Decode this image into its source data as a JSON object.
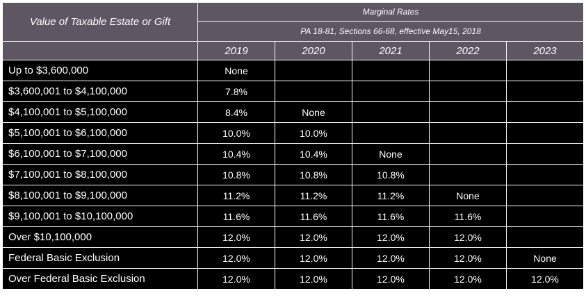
{
  "header": {
    "label_column": "Value of Taxable Estate or Gift",
    "group_title": "Marginal Rates",
    "group_subtitle": "PA 18-81, Sections 66-68, effective May15, 2018",
    "years": [
      "2019",
      "2020",
      "2021",
      "2022",
      "2023"
    ]
  },
  "rows": [
    {
      "label": "Up to $3,600,000",
      "values": [
        "None",
        "",
        "",
        "",
        ""
      ]
    },
    {
      "label": "$3,600,001 to $4,100,000",
      "values": [
        "7.8%",
        "",
        "",
        "",
        ""
      ]
    },
    {
      "label": "$4,100,001 to $5,100,000",
      "values": [
        "8.4%",
        "None",
        "",
        "",
        ""
      ]
    },
    {
      "label": "$5,100,001 to $6,100,000",
      "values": [
        "10.0%",
        "10.0%",
        "",
        "",
        ""
      ]
    },
    {
      "label": "$6,100,001 to $7,100,000",
      "values": [
        "10.4%",
        "10.4%",
        "None",
        "",
        ""
      ]
    },
    {
      "label": "$7,100,001 to $8,100,000",
      "values": [
        "10.8%",
        "10.8%",
        "10.8%",
        "",
        ""
      ]
    },
    {
      "label": "$8,100,001 to $9,100,000",
      "values": [
        "11.2%",
        "11.2%",
        "11.2%",
        "None",
        ""
      ]
    },
    {
      "label": "$9,100,001 to $10,100,000",
      "values": [
        "11.6%",
        "11.6%",
        "11.6%",
        "11.6%",
        ""
      ]
    },
    {
      "label": "Over $10,100,000",
      "values": [
        "12.0%",
        "12.0%",
        "12.0%",
        "12.0%",
        ""
      ]
    },
    {
      "label": "Federal Basic Exclusion",
      "values": [
        "12.0%",
        "12.0%",
        "12.0%",
        "12.0%",
        "None"
      ]
    },
    {
      "label": "Over Federal Basic Exclusion",
      "values": [
        "12.0%",
        "12.0%",
        "12.0%",
        "12.0%",
        "12.0%"
      ]
    }
  ],
  "colors": {
    "header_background": "#5f5663",
    "body_background": "#000000",
    "text": "#ffffff",
    "grid": "#ffffff"
  }
}
